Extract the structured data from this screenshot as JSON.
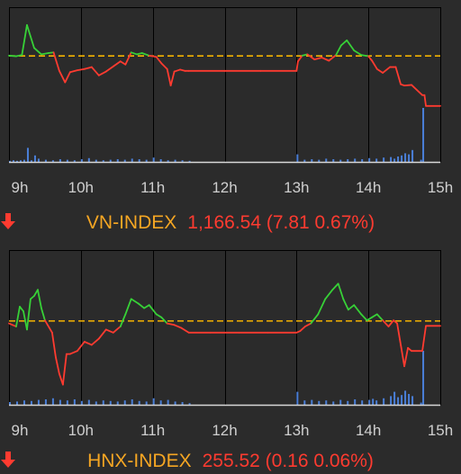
{
  "colors": {
    "background": "#2b2b2b",
    "grid": "#000000",
    "reference_line": "#f5b400",
    "up": "#37d137",
    "down": "#ff3b30",
    "volume": "#4a7fd8",
    "axis_text": "#cfcfcf",
    "index_name": "#f5a623"
  },
  "chart_data": [
    {
      "type": "line",
      "title": "VN-INDEX",
      "ticks": [
        "9h",
        "10h",
        "11h",
        "12h",
        "13h",
        "14h",
        "15h"
      ],
      "reference": 1174.35,
      "ylim": [
        1158,
        1182
      ],
      "series": [
        {
          "x": [
            9.0,
            9.1,
            9.18,
            9.25,
            9.35,
            9.45,
            9.55,
            9.62,
            9.7,
            9.78,
            9.85,
            9.95,
            10.05,
            10.15,
            10.25,
            10.35,
            10.45,
            10.55,
            10.62,
            10.7,
            10.78,
            10.85,
            10.95,
            11.05,
            11.12,
            11.2,
            11.25,
            11.3,
            11.38,
            11.45,
            11.5,
            12.0,
            12.5,
            13.0,
            13.02,
            13.08,
            13.15,
            13.25,
            13.35,
            13.45,
            13.55,
            13.62,
            13.7,
            13.8,
            13.9,
            14.0,
            14.05,
            14.12,
            14.2,
            14.3,
            14.38,
            14.45,
            14.5,
            14.6,
            14.75,
            14.78,
            14.8,
            15.0
          ],
          "values": [
            1174.4,
            1174.3,
            1174.5,
            1179.2,
            1175.6,
            1174.6,
            1174.8,
            1174.9,
            1172.0,
            1170.2,
            1171.8,
            1172.1,
            1172.3,
            1172.6,
            1171.3,
            1171.9,
            1172.7,
            1173.5,
            1173.0,
            1174.9,
            1174.6,
            1174.8,
            1174.4,
            1174.2,
            1173.2,
            1172.3,
            1169.7,
            1171.9,
            1172.2,
            1172.0,
            1172.0,
            1172.0,
            1172.0,
            1172.0,
            1173.5,
            1174.4,
            1174.6,
            1173.8,
            1174.1,
            1173.6,
            1174.5,
            1176.0,
            1176.8,
            1175.2,
            1174.5,
            1174.3,
            1173.6,
            1172.3,
            1171.7,
            1172.6,
            1172.6,
            1169.9,
            1169.7,
            1169.8,
            1168.2,
            1168.2,
            1166.5,
            1166.5
          ]
        }
      ],
      "volume": {
        "x": [
          9.0,
          9.05,
          9.1,
          9.15,
          9.2,
          9.25,
          9.3,
          9.35,
          9.4,
          9.5,
          9.6,
          9.7,
          9.8,
          9.9,
          10.0,
          10.1,
          10.2,
          10.3,
          10.4,
          10.5,
          10.6,
          10.7,
          10.8,
          10.9,
          11.0,
          11.1,
          11.2,
          11.3,
          11.4,
          11.5,
          13.0,
          13.1,
          13.2,
          13.3,
          13.4,
          13.5,
          13.6,
          13.7,
          13.8,
          13.9,
          14.0,
          14.1,
          14.2,
          14.3,
          14.35,
          14.4,
          14.45,
          14.5,
          14.55,
          14.6,
          14.72,
          14.75
        ],
        "values": [
          2,
          3,
          2,
          3,
          4,
          26,
          3,
          12,
          6,
          4,
          3,
          5,
          4,
          3,
          5,
          7,
          4,
          3,
          4,
          5,
          4,
          6,
          5,
          4,
          8,
          5,
          3,
          4,
          3,
          2,
          14,
          4,
          5,
          4,
          6,
          5,
          4,
          5,
          6,
          5,
          7,
          6,
          8,
          9,
          6,
          10,
          12,
          16,
          14,
          22,
          4,
          100
        ]
      }
    },
    {
      "type": "line",
      "title": "HNX-INDEX",
      "ticks": [
        "9h",
        "10h",
        "11h",
        "12h",
        "13h",
        "14h",
        "15h"
      ],
      "reference": 255.68,
      "ylim": [
        253.0,
        258.0
      ],
      "series": [
        {
          "x": [
            9.0,
            9.05,
            9.1,
            9.15,
            9.2,
            9.25,
            9.3,
            9.35,
            9.4,
            9.45,
            9.5,
            9.6,
            9.65,
            9.7,
            9.75,
            9.8,
            9.85,
            9.95,
            10.05,
            10.15,
            10.25,
            10.35,
            10.45,
            10.55,
            10.62,
            10.7,
            10.8,
            10.88,
            10.95,
            11.05,
            11.12,
            11.2,
            11.3,
            11.4,
            11.5,
            11.8,
            12.2,
            12.6,
            13.0,
            13.05,
            13.12,
            13.2,
            13.3,
            13.4,
            13.5,
            13.58,
            13.65,
            13.72,
            13.8,
            13.9,
            13.98,
            14.05,
            14.12,
            14.2,
            14.28,
            14.35,
            14.4,
            14.45,
            14.5,
            14.55,
            14.6,
            14.75,
            14.8,
            15.0
          ],
          "values": [
            255.6,
            255.55,
            255.5,
            256.15,
            256.0,
            255.4,
            256.4,
            256.5,
            256.7,
            256.1,
            255.7,
            255.3,
            254.5,
            253.95,
            253.6,
            254.6,
            254.6,
            254.7,
            255.0,
            254.9,
            255.1,
            255.4,
            255.3,
            255.5,
            255.9,
            256.4,
            256.25,
            256.1,
            256.2,
            255.9,
            255.8,
            255.6,
            255.55,
            255.45,
            255.3,
            255.3,
            255.3,
            255.3,
            255.3,
            255.35,
            255.5,
            255.6,
            255.9,
            256.4,
            256.7,
            256.9,
            256.4,
            256.05,
            256.2,
            255.9,
            255.7,
            255.8,
            255.9,
            255.7,
            255.5,
            255.7,
            255.6,
            254.9,
            254.2,
            254.8,
            254.7,
            254.7,
            255.52,
            255.52
          ]
        }
      ],
      "volume": {
        "x": [
          9.0,
          9.1,
          9.2,
          9.3,
          9.4,
          9.5,
          9.6,
          9.7,
          9.8,
          9.9,
          10.0,
          10.1,
          10.2,
          10.3,
          10.4,
          10.5,
          10.6,
          10.7,
          10.8,
          10.9,
          11.0,
          11.1,
          11.2,
          11.3,
          11.4,
          11.5,
          13.0,
          13.1,
          13.2,
          13.3,
          13.4,
          13.5,
          13.6,
          13.7,
          13.8,
          13.9,
          14.0,
          14.05,
          14.1,
          14.2,
          14.3,
          14.35,
          14.4,
          14.45,
          14.5,
          14.55,
          14.6,
          14.72,
          14.75
        ],
        "values": [
          5,
          6,
          8,
          7,
          9,
          10,
          12,
          9,
          8,
          10,
          7,
          9,
          6,
          8,
          7,
          6,
          8,
          10,
          7,
          6,
          12,
          8,
          9,
          6,
          5,
          3,
          24,
          8,
          9,
          7,
          8,
          6,
          9,
          7,
          10,
          8,
          9,
          11,
          8,
          12,
          16,
          24,
          14,
          18,
          26,
          20,
          16,
          4,
          100
        ]
      }
    }
  ],
  "captions": [
    {
      "name": "VN-INDEX",
      "value": "1,166.54 (7.81 0.67%)"
    },
    {
      "name": "HNX-INDEX",
      "value": "255.52 (0.16 0.06%)"
    }
  ]
}
